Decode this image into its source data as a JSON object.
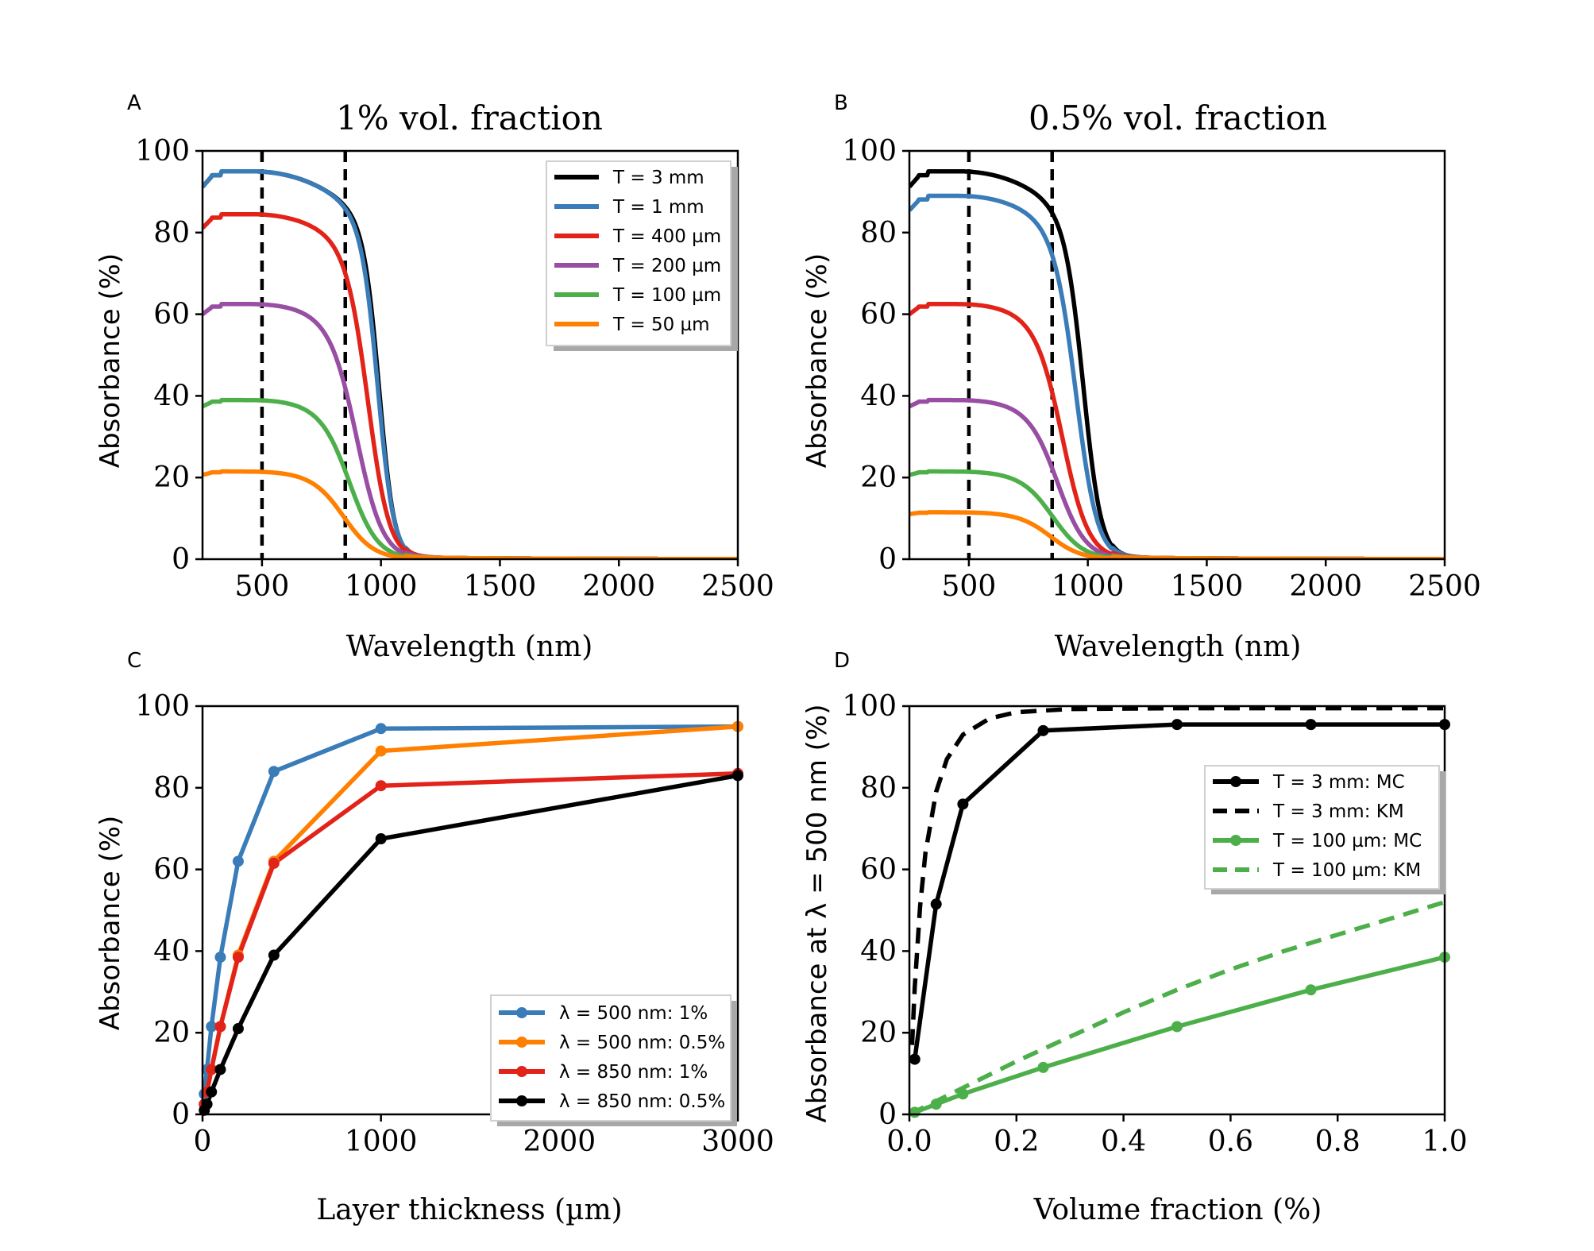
{
  "chart_data": [
    {
      "panel_letter": "A",
      "type": "line",
      "title": "1% vol. fraction",
      "xlabel": "Wavelength (nm)",
      "ylabel": "Absorbance (%)",
      "xlim": [
        250,
        2500
      ],
      "ylim": [
        0,
        100
      ],
      "xticks": [
        500,
        1000,
        1500,
        2000,
        2500
      ],
      "yticks": [
        0,
        20,
        40,
        60,
        80,
        100
      ],
      "vlines": [
        500,
        850
      ],
      "legend_position": "top-right",
      "series": [
        {
          "name": "T = 3 mm",
          "color": "#000000",
          "kind": "spectrum",
          "plateau": 95,
          "cutoff": 995,
          "steep": 32
        },
        {
          "name": "T = 1 mm",
          "color": "#3a7cb8",
          "kind": "spectrum",
          "plateau": 95,
          "cutoff": 990,
          "steep": 34
        },
        {
          "name": "T = 400 µm",
          "color": "#e2231a",
          "kind": "spectrum",
          "plateau": 84.5,
          "cutoff": 950,
          "steep": 45
        },
        {
          "name": "T = 200 µm",
          "color": "#984ea3",
          "kind": "spectrum",
          "plateau": 62.5,
          "cutoff": 905,
          "steep": 55
        },
        {
          "name": "T = 100 µm",
          "color": "#4daf4a",
          "kind": "spectrum",
          "plateau": 39,
          "cutoff": 875,
          "steep": 60
        },
        {
          "name": "T = 50 µm",
          "color": "#ff7f00",
          "kind": "spectrum",
          "plateau": 21.5,
          "cutoff": 850,
          "steep": 65
        }
      ]
    },
    {
      "panel_letter": "B",
      "type": "line",
      "title": "0.5% vol. fraction",
      "xlabel": "Wavelength (nm)",
      "ylabel": "Absorbance (%)",
      "xlim": [
        250,
        2500
      ],
      "ylim": [
        0,
        100
      ],
      "xticks": [
        500,
        1000,
        1500,
        2000,
        2500
      ],
      "yticks": [
        0,
        20,
        40,
        60,
        80,
        100
      ],
      "vlines": [
        500,
        850
      ],
      "series": [
        {
          "name": "T = 3 mm",
          "color": "#000000",
          "kind": "spectrum",
          "plateau": 95,
          "cutoff": 985,
          "steep": 38
        },
        {
          "name": "T = 1 mm",
          "color": "#3a7cb8",
          "kind": "spectrum",
          "plateau": 89,
          "cutoff": 955,
          "steep": 45
        },
        {
          "name": "T = 400 µm",
          "color": "#e2231a",
          "kind": "spectrum",
          "plateau": 62.5,
          "cutoff": 900,
          "steep": 55
        },
        {
          "name": "T = 200 µm",
          "color": "#984ea3",
          "kind": "spectrum",
          "plateau": 39,
          "cutoff": 880,
          "steep": 60
        },
        {
          "name": "T = 100 µm",
          "color": "#4daf4a",
          "kind": "spectrum",
          "plateau": 21.5,
          "cutoff": 860,
          "steep": 65
        },
        {
          "name": "T = 50 µm",
          "color": "#ff7f00",
          "kind": "spectrum",
          "plateau": 11.5,
          "cutoff": 850,
          "steep": 65
        }
      ]
    },
    {
      "panel_letter": "C",
      "type": "line",
      "title": "",
      "xlabel": "Layer thickness (µm)",
      "ylabel": "Absorbance (%)",
      "xlim": [
        0,
        3000
      ],
      "ylim": [
        0,
        100
      ],
      "xticks": [
        0,
        1000,
        2000,
        3000
      ],
      "yticks": [
        0,
        20,
        40,
        60,
        80,
        100
      ],
      "legend_position": "bottom-right",
      "series": [
        {
          "name": "λ = 500 nm: 1%",
          "color": "#3a7cb8",
          "markers": true,
          "x": [
            10,
            25,
            50,
            100,
            200,
            400,
            1000,
            3000
          ],
          "y": [
            5,
            11,
            21.5,
            38.5,
            62,
            84,
            94.5,
            95
          ]
        },
        {
          "name": "λ = 500 nm: 0.5%",
          "color": "#ff7f00",
          "markers": true,
          "x": [
            10,
            25,
            50,
            100,
            200,
            400,
            1000,
            3000
          ],
          "y": [
            2.5,
            5.5,
            11,
            21.5,
            39,
            62,
            89,
            95
          ]
        },
        {
          "name": "λ = 850 nm: 1%",
          "color": "#e2231a",
          "markers": true,
          "x": [
            10,
            25,
            50,
            100,
            200,
            400,
            1000,
            3000
          ],
          "y": [
            2.5,
            5.5,
            11,
            21.5,
            38.5,
            61.5,
            80.5,
            83.5
          ]
        },
        {
          "name": "λ = 850 nm: 0.5%",
          "color": "#000000",
          "markers": true,
          "x": [
            10,
            25,
            50,
            100,
            200,
            400,
            1000,
            3000
          ],
          "y": [
            1,
            2.5,
            5.5,
            11,
            21,
            39,
            67.5,
            83
          ]
        }
      ]
    },
    {
      "panel_letter": "D",
      "type": "line",
      "title": "",
      "xlabel": "Volume fraction (%)",
      "ylabel": "Absorbance at λ = 500 nm (%)",
      "xlim": [
        0,
        1
      ],
      "ylim": [
        0,
        100
      ],
      "xticks": [
        0.0,
        0.2,
        0.4,
        0.6,
        0.8,
        1.0
      ],
      "xtick_labels": [
        "0.0",
        "0.2",
        "0.4",
        "0.6",
        "0.8",
        "1.0"
      ],
      "yticks": [
        0,
        20,
        40,
        60,
        80,
        100
      ],
      "legend_position": "top-right",
      "series": [
        {
          "name": "T = 3 mm: MC",
          "color": "#000000",
          "markers": true,
          "dash": false,
          "x": [
            0.01,
            0.05,
            0.1,
            0.25,
            0.5,
            0.75,
            1.0
          ],
          "y": [
            13.5,
            51.5,
            76,
            94,
            95.5,
            95.5,
            95.5
          ]
        },
        {
          "name": "T = 3 mm: KM",
          "color": "#000000",
          "markers": false,
          "dash": true,
          "x": [
            0.005,
            0.01,
            0.02,
            0.03,
            0.05,
            0.07,
            0.1,
            0.15,
            0.2,
            0.3,
            0.5,
            0.75,
            1.0
          ],
          "y": [
            17,
            31,
            51,
            64,
            79,
            87,
            93,
            97,
            98.5,
            99.3,
            99.5,
            99.5,
            99.5
          ]
        },
        {
          "name": "T = 100 µm: MC",
          "color": "#4daf4a",
          "markers": true,
          "dash": false,
          "x": [
            0.01,
            0.05,
            0.1,
            0.25,
            0.5,
            0.75,
            1.0
          ],
          "y": [
            0.5,
            2.5,
            5,
            11.5,
            21.5,
            30.5,
            38.5
          ]
        },
        {
          "name": "T = 100 µm: KM",
          "color": "#4daf4a",
          "markers": false,
          "dash": true,
          "x": [
            0,
            0.1,
            0.2,
            0.3,
            0.4,
            0.5,
            0.6,
            0.7,
            0.8,
            0.9,
            1.0
          ],
          "y": [
            0,
            6.5,
            13,
            19,
            25,
            30.5,
            35.5,
            40,
            44,
            48,
            52
          ]
        }
      ]
    }
  ]
}
